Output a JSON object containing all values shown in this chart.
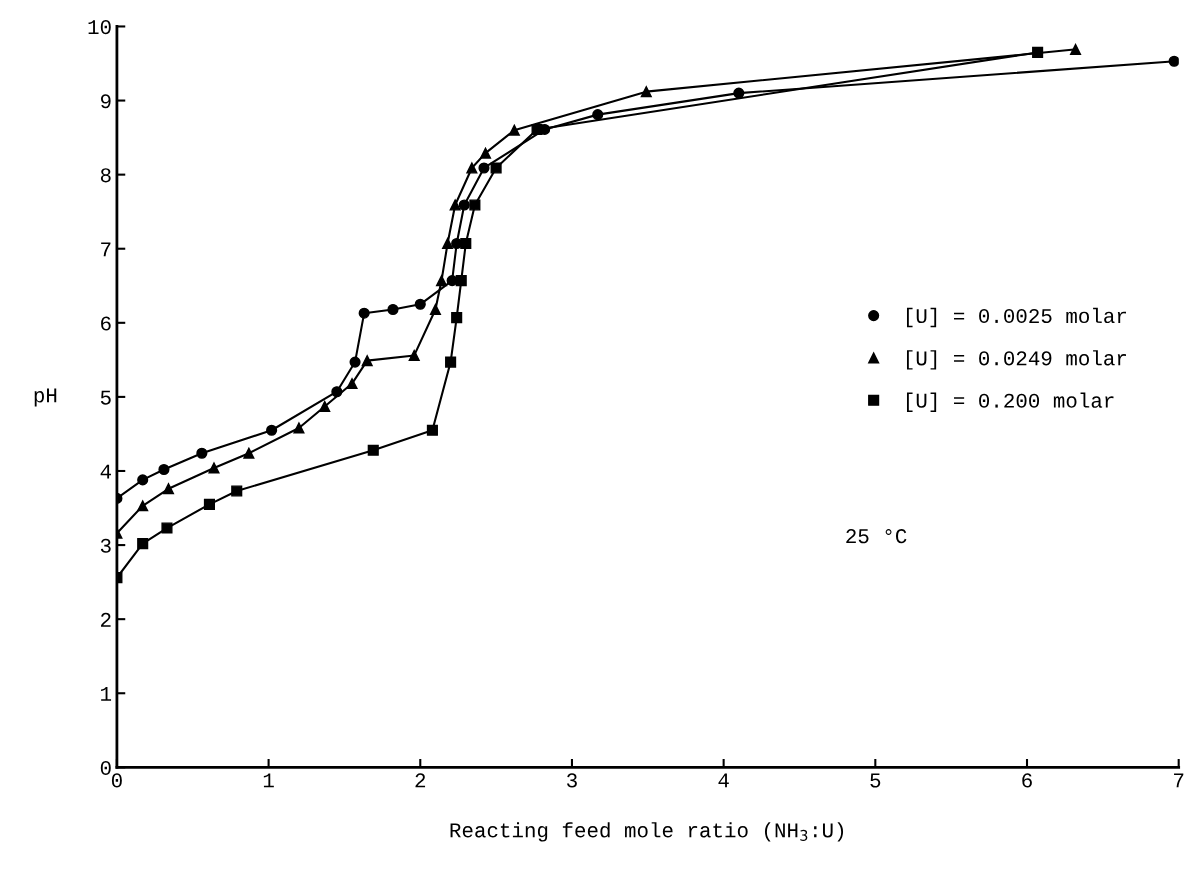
{
  "chart_data": {
    "type": "line",
    "xlabel": "Reacting feed mole ratio (NH$_{3}$:U)",
    "ylabel": "pH",
    "xlim": [
      0,
      7
    ],
    "ylim": [
      0,
      10
    ],
    "xticks": [
      0,
      1,
      2,
      3,
      4,
      5,
      6,
      7
    ],
    "yticks": [
      0,
      1,
      2,
      3,
      4,
      5,
      6,
      7,
      8,
      9,
      10
    ],
    "grid": false,
    "legend": "right",
    "line_style": "solid",
    "series": [
      {
        "name": "[U] = 0.0025 molar",
        "color": "#000000",
        "marker": "circle",
        "x": [
          0,
          0.17,
          0.31,
          0.56,
          1.02,
          1.45,
          1.57,
          1.63,
          1.82,
          2.0,
          2.21,
          2.24,
          2.29,
          2.42,
          2.82,
          3.17,
          4.1,
          6.97
        ],
        "values": [
          3.63,
          3.88,
          4.02,
          4.24,
          4.55,
          5.07,
          5.47,
          6.13,
          6.18,
          6.25,
          6.57,
          7.07,
          7.59,
          8.09,
          8.61,
          8.81,
          9.1,
          9.53
        ]
      },
      {
        "name": "[U] = 0.0249 molar",
        "color": "#000000",
        "marker": "triangle",
        "x": [
          0,
          0.17,
          0.34,
          0.64,
          0.87,
          1.2,
          1.37,
          1.55,
          1.65,
          1.96,
          2.1,
          2.14,
          2.18,
          2.23,
          2.34,
          2.43,
          2.62,
          3.49,
          6.32
        ],
        "values": [
          3.16,
          3.53,
          3.76,
          4.04,
          4.24,
          4.58,
          4.87,
          5.18,
          5.49,
          5.56,
          6.18,
          6.57,
          7.07,
          7.59,
          8.09,
          8.29,
          8.6,
          9.12,
          9.69
        ]
      },
      {
        "name": "[U] = 0.200 molar",
        "color": "#000000",
        "marker": "square",
        "x": [
          0,
          0.17,
          0.33,
          0.61,
          0.79,
          1.69,
          2.08,
          2.2,
          2.24,
          2.27,
          2.3,
          2.36,
          2.5,
          2.77,
          6.07
        ],
        "values": [
          2.56,
          3.02,
          3.23,
          3.55,
          3.73,
          4.28,
          4.55,
          5.47,
          6.07,
          6.57,
          7.07,
          7.59,
          8.09,
          8.61,
          9.65
        ]
      }
    ],
    "annotations": [
      "25 °C"
    ]
  }
}
